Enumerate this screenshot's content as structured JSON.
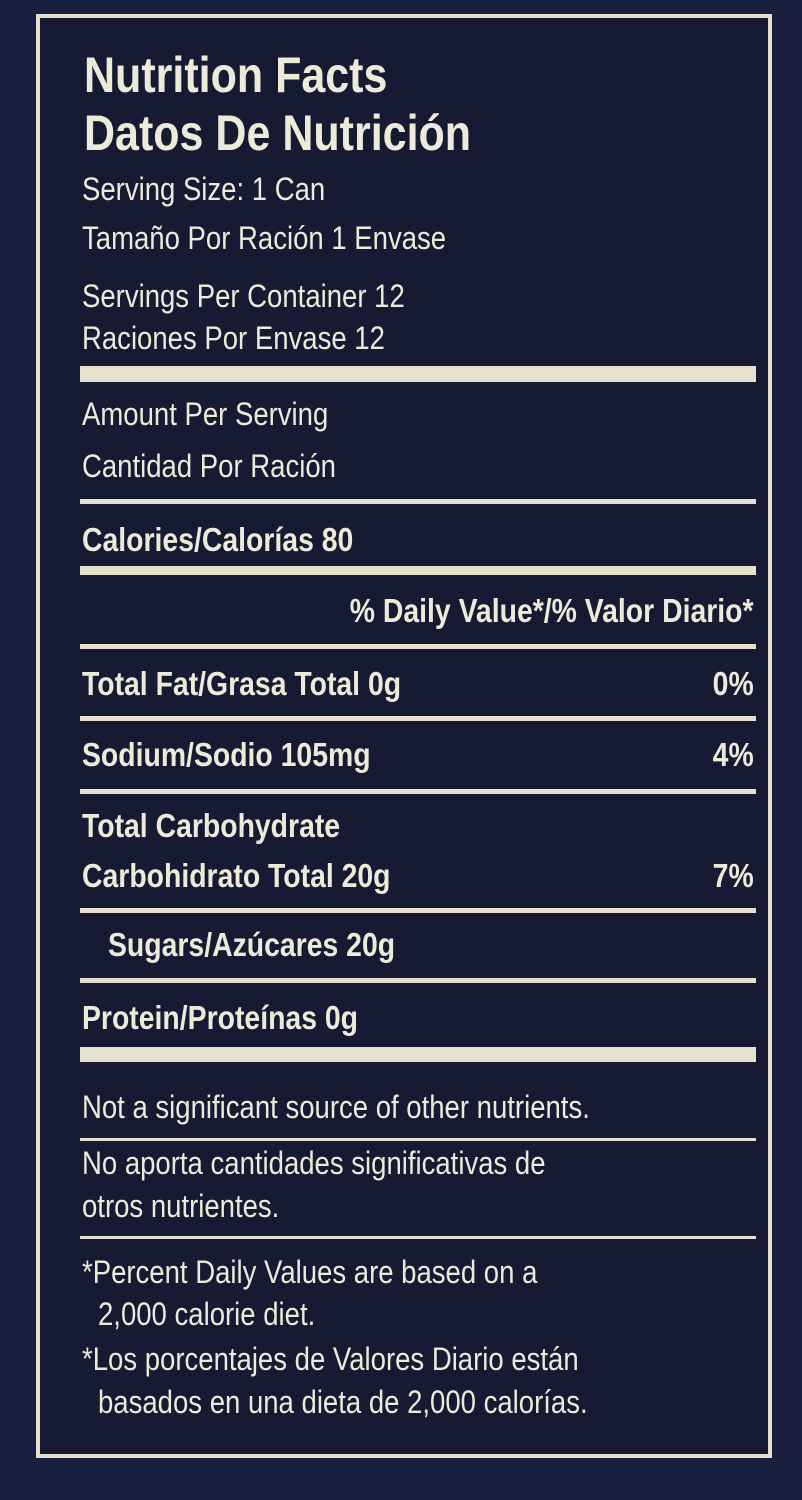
{
  "title_en": "Nutrition Facts",
  "title_es": "Datos De Nutrición",
  "serving_size_en": "Serving Size: 1 Can",
  "serving_size_es": "Tamaño Por Ración 1 Envase",
  "servings_en": "Servings Per Container 12",
  "servings_es": "Raciones Por Envase 12",
  "amount_en": "Amount Per Serving",
  "amount_es": "Cantidad Por Ración",
  "calories": "Calories/Calorías 80",
  "dv_header": "% Daily Value*/% Valor Diario*",
  "nutrients": [
    {
      "label": "Total Fat/Grasa Total 0g",
      "dv": "0%"
    },
    {
      "label": "Sodium/Sodio 105mg",
      "dv": "4%"
    },
    {
      "label": "Total Carbohydrate",
      "label2": "Carbohidrato Total 20g",
      "dv": "7%"
    },
    {
      "label": "Sugars/Azúcares 20g"
    },
    {
      "label": "Protein/Proteínas 0g"
    }
  ],
  "note_en": "Not a significant source of other nutrients.",
  "note_es_1": "No aporta cantidades significativas de",
  "note_es_2": "otros nutrientes.",
  "footnote_en_1": "*Percent Daily Values are based on a",
  "footnote_en_2": "2,000 calorie diet.",
  "footnote_es_1": "*Los porcentajes de Valores Diario están",
  "footnote_es_2": "basados en una dieta de 2,000 calorías.",
  "colors": {
    "background": "#1b2040",
    "text": "#ecead9"
  }
}
